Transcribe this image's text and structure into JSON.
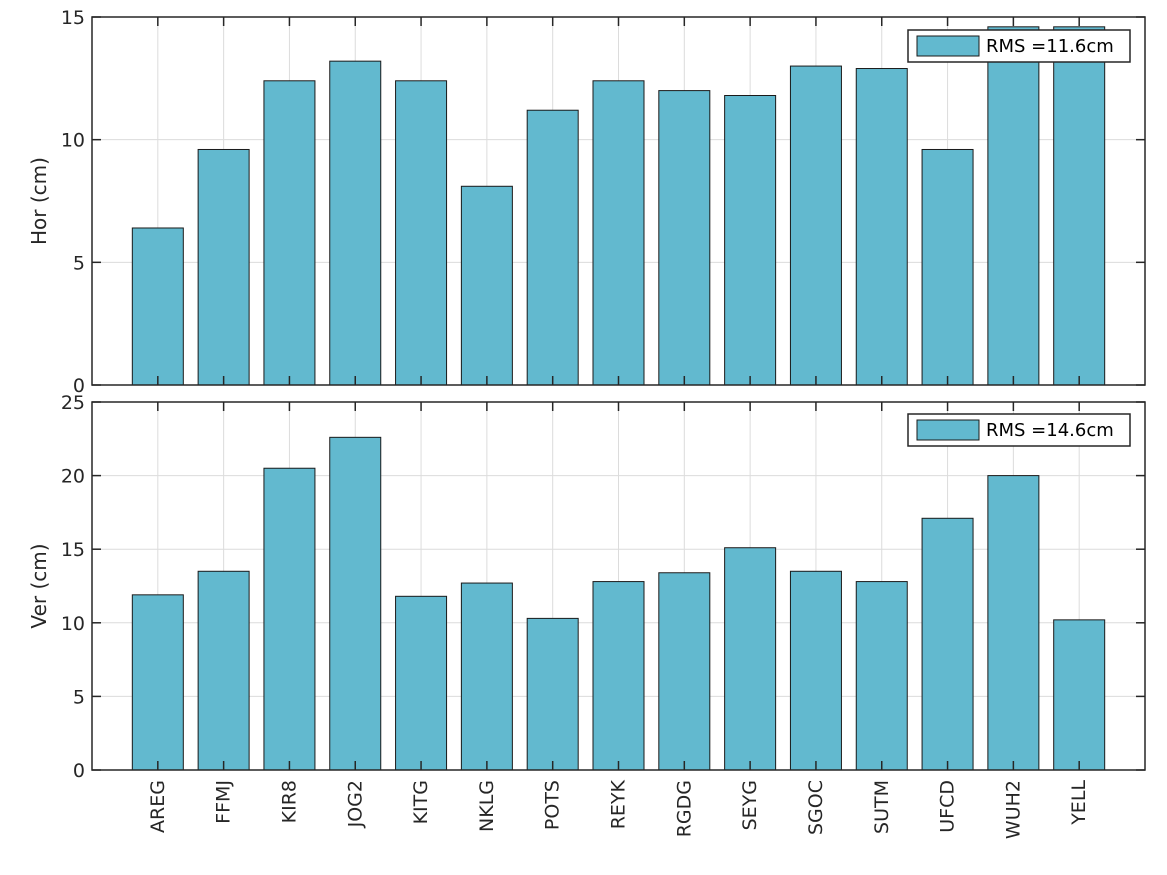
{
  "chart_data": [
    {
      "type": "bar",
      "ylabel": "Hor (cm)",
      "ylim": [
        0,
        15
      ],
      "yticks": [
        0,
        5,
        10,
        15
      ],
      "grid": true,
      "legend_position": "top-right",
      "categories": [
        "AREG",
        "FFMJ",
        "KIR8",
        "JOG2",
        "KITG",
        "NKLG",
        "POTS",
        "REYK",
        "RGDG",
        "SEYG",
        "SGOC",
        "SUTM",
        "UFCD",
        "WUH2",
        "YELL"
      ],
      "series": [
        {
          "name": "RMS =11.6cm",
          "values": [
            6.4,
            9.6,
            12.4,
            13.2,
            12.4,
            8.1,
            11.2,
            12.4,
            12.0,
            11.8,
            13.0,
            12.9,
            9.6,
            14.6,
            14.6
          ]
        }
      ],
      "bar_color": "#62B9CF"
    },
    {
      "type": "bar",
      "ylabel": "Ver (cm)",
      "ylim": [
        0,
        25
      ],
      "yticks": [
        0,
        5,
        10,
        15,
        20,
        25
      ],
      "grid": true,
      "legend_position": "top-right",
      "categories": [
        "AREG",
        "FFMJ",
        "KIR8",
        "JOG2",
        "KITG",
        "NKLG",
        "POTS",
        "REYK",
        "RGDG",
        "SEYG",
        "SGOC",
        "SUTM",
        "UFCD",
        "WUH2",
        "YELL"
      ],
      "series": [
        {
          "name": "RMS =14.6cm",
          "values": [
            11.9,
            13.5,
            20.5,
            22.6,
            11.8,
            12.7,
            10.3,
            12.8,
            13.4,
            15.1,
            13.5,
            12.8,
            17.1,
            20.0,
            10.2
          ]
        }
      ],
      "bar_color": "#62B9CF"
    }
  ]
}
